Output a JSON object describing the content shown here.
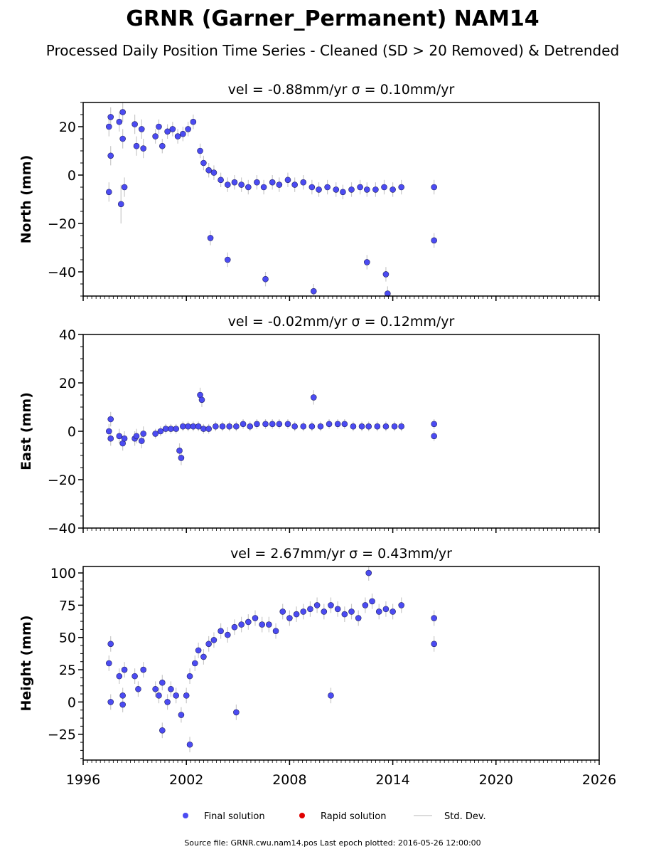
{
  "title": "GRNR (Garner_Permanent) NAM14",
  "subtitle": "Processed Daily Position Time Series - Cleaned (SD > 20 Removed) & Detrended",
  "legend": {
    "position": "bottom-center",
    "items": [
      {
        "label": "Final solution",
        "color": "#4b4bf2",
        "marker": "circle"
      },
      {
        "label": "Rapid solution",
        "color": "#e00000",
        "marker": "circle"
      },
      {
        "label": "Std. Dev.",
        "color": "#cfcfcf",
        "marker": "line"
      }
    ]
  },
  "footer": "Source file: GRNR.cwu.nam14.pos  Last epoch plotted: 2016-05-26 12:00:00",
  "colors": {
    "point_fill": "#4b4bf2",
    "point_edge": "#202060",
    "error_bar": "#c8c8c8"
  },
  "chart_data": [
    {
      "type": "scatter",
      "title": "vel = -0.88mm/yr   σ = 0.10mm/yr",
      "ylabel": "North (mm)",
      "xlim": [
        1996,
        2026
      ],
      "ylim": [
        -50,
        30
      ],
      "yticks": [
        20,
        0,
        -20,
        -40
      ],
      "ytick_labels": [
        "20",
        "0",
        "−20",
        "−40"
      ],
      "grid": false,
      "series": [
        {
          "x": [
            1997.5,
            1997.5,
            1997.6,
            1997.6,
            1998.1,
            1998.2,
            1998.3,
            1998.3,
            1998.4,
            1999.0,
            1999.1,
            1999.4,
            1999.5,
            2000.2,
            2000.4,
            2000.6,
            2000.9,
            2001.2,
            2001.5,
            2001.8,
            2002.1,
            2002.4,
            2002.8,
            2003.0,
            2003.3,
            2003.6,
            2004.0,
            2004.4,
            2004.8,
            2005.2,
            2005.6,
            2006.1,
            2006.5,
            2007.0,
            2007.4,
            2007.9,
            2008.3,
            2008.8,
            2009.3,
            2009.7,
            2010.2,
            2010.7,
            2011.1,
            2011.6,
            2012.1,
            2012.5,
            2013.0,
            2013.5,
            2014.0,
            2014.5,
            2016.4,
            2016.4,
            2003.4,
            2004.4,
            2006.6,
            2009.4,
            2012.5,
            2013.6,
            2013.7
          ],
          "y": [
            20,
            -7,
            24,
            8,
            22,
            -12,
            26,
            15,
            -5,
            21,
            12,
            19,
            11,
            16,
            20,
            12,
            18,
            19,
            16,
            17,
            19,
            22,
            10,
            5,
            2,
            1,
            -2,
            -4,
            -3,
            -4,
            -5,
            -3,
            -5,
            -3,
            -4,
            -2,
            -4,
            -3,
            -5,
            -6,
            -5,
            -6,
            -7,
            -6,
            -5,
            -6,
            -6,
            -5,
            -6,
            -5,
            -5,
            -27,
            -26,
            -35,
            -43,
            -48,
            -36,
            -41,
            -49
          ],
          "err": [
            4,
            4,
            4,
            4,
            4,
            8,
            4,
            4,
            4,
            4,
            4,
            4,
            4,
            3,
            3,
            3,
            3,
            3,
            3,
            3,
            3,
            3,
            3,
            3,
            3,
            3,
            3,
            3,
            3,
            3,
            3,
            3,
            3,
            3,
            3,
            3,
            3,
            3,
            3,
            3,
            3,
            3,
            3,
            3,
            3,
            3,
            3,
            3,
            3,
            3,
            3,
            3,
            3,
            3,
            3,
            3,
            3,
            3,
            3
          ]
        }
      ]
    },
    {
      "type": "scatter",
      "title": "vel = -0.02mm/yr   σ = 0.12mm/yr",
      "ylabel": "East (mm)",
      "xlim": [
        1996,
        2026
      ],
      "ylim": [
        -40,
        40
      ],
      "yticks": [
        40,
        20,
        0,
        -20,
        -40
      ],
      "ytick_labels": [
        "40",
        "20",
        "0",
        "−20",
        "−40"
      ],
      "grid": false,
      "series": [
        {
          "x": [
            1997.5,
            1997.6,
            1997.6,
            1998.1,
            1998.3,
            1998.4,
            1999.0,
            1999.1,
            1999.4,
            1999.5,
            2000.2,
            2000.5,
            2000.8,
            2001.1,
            2001.4,
            2001.8,
            2002.1,
            2002.4,
            2002.7,
            2003.0,
            2003.3,
            2003.7,
            2004.1,
            2004.5,
            2004.9,
            2005.3,
            2005.7,
            2006.1,
            2006.6,
            2007.0,
            2007.4,
            2007.9,
            2008.3,
            2008.8,
            2009.3,
            2009.8,
            2010.3,
            2010.8,
            2011.2,
            2011.7,
            2012.2,
            2012.6,
            2013.1,
            2013.6,
            2014.1,
            2014.5,
            2016.4,
            2016.4,
            2002.8,
            2002.9,
            2009.4,
            2001.6,
            2001.7
          ],
          "y": [
            0,
            5,
            -3,
            -2,
            -5,
            -3,
            -3,
            -2,
            -4,
            -1,
            -1,
            0,
            1,
            1,
            1,
            2,
            2,
            2,
            2,
            1,
            1,
            2,
            2,
            2,
            2,
            3,
            2,
            3,
            3,
            3,
            3,
            3,
            2,
            2,
            2,
            2,
            3,
            3,
            3,
            2,
            2,
            2,
            2,
            2,
            2,
            2,
            3,
            -2,
            15,
            13,
            14,
            -8,
            -11
          ],
          "err": [
            3,
            3,
            3,
            3,
            3,
            3,
            3,
            3,
            3,
            3,
            2,
            2,
            2,
            2,
            2,
            2,
            2,
            2,
            2,
            2,
            2,
            2,
            2,
            2,
            2,
            2,
            2,
            2,
            2,
            2,
            2,
            2,
            2,
            2,
            2,
            2,
            2,
            2,
            2,
            2,
            2,
            2,
            2,
            2,
            2,
            2,
            2,
            2,
            3,
            3,
            3,
            3,
            3
          ]
        }
      ]
    },
    {
      "type": "scatter",
      "title": "vel = 2.67mm/yr   σ = 0.43mm/yr",
      "ylabel": "Height (mm)",
      "xlim": [
        1996,
        2026
      ],
      "ylim": [
        -45,
        105
      ],
      "yticks": [
        100,
        75,
        50,
        25,
        0,
        -25
      ],
      "ytick_labels": [
        "100",
        "75",
        "50",
        "25",
        "0",
        "−25"
      ],
      "grid": false,
      "series": [
        {
          "x": [
            1997.5,
            1997.6,
            1997.6,
            1998.1,
            1998.3,
            1998.3,
            1998.4,
            1999.0,
            1999.2,
            1999.5,
            2000.2,
            2000.4,
            2000.6,
            2000.9,
            2001.1,
            2001.4,
            2001.7,
            2002.0,
            2002.2,
            2002.5,
            2002.7,
            2003.0,
            2003.3,
            2003.6,
            2004.0,
            2004.4,
            2004.8,
            2005.2,
            2005.6,
            2006.0,
            2006.4,
            2006.8,
            2007.2,
            2007.6,
            2008.0,
            2008.4,
            2008.8,
            2009.2,
            2009.6,
            2010.0,
            2010.4,
            2010.8,
            2011.2,
            2011.6,
            2012.0,
            2012.4,
            2012.8,
            2013.2,
            2013.6,
            2014.0,
            2014.5,
            2016.4,
            2016.4,
            2000.6,
            2002.2,
            2004.9,
            2010.4,
            2012.6
          ],
          "y": [
            30,
            0,
            45,
            20,
            5,
            -2,
            25,
            20,
            10,
            25,
            10,
            5,
            15,
            0,
            10,
            5,
            -10,
            5,
            20,
            30,
            40,
            35,
            45,
            48,
            55,
            52,
            58,
            60,
            62,
            65,
            60,
            60,
            55,
            70,
            65,
            68,
            70,
            72,
            75,
            70,
            75,
            72,
            68,
            70,
            65,
            75,
            78,
            70,
            72,
            70,
            75,
            65,
            45,
            -22,
            -33,
            -8,
            5,
            100
          ],
          "err": [
            6,
            6,
            6,
            6,
            6,
            6,
            6,
            6,
            6,
            6,
            6,
            6,
            6,
            6,
            6,
            6,
            6,
            6,
            6,
            6,
            6,
            6,
            6,
            6,
            6,
            6,
            6,
            6,
            6,
            6,
            6,
            6,
            6,
            6,
            6,
            6,
            6,
            6,
            6,
            6,
            6,
            6,
            6,
            6,
            6,
            6,
            6,
            6,
            6,
            6,
            6,
            6,
            6,
            6,
            6,
            6,
            6,
            6
          ]
        }
      ]
    }
  ],
  "x_axis": {
    "ticks": [
      1996,
      2002,
      2008,
      2014,
      2020,
      2026
    ],
    "tick_labels": [
      "1996",
      "2002",
      "2008",
      "2014",
      "2020",
      "2026"
    ]
  }
}
